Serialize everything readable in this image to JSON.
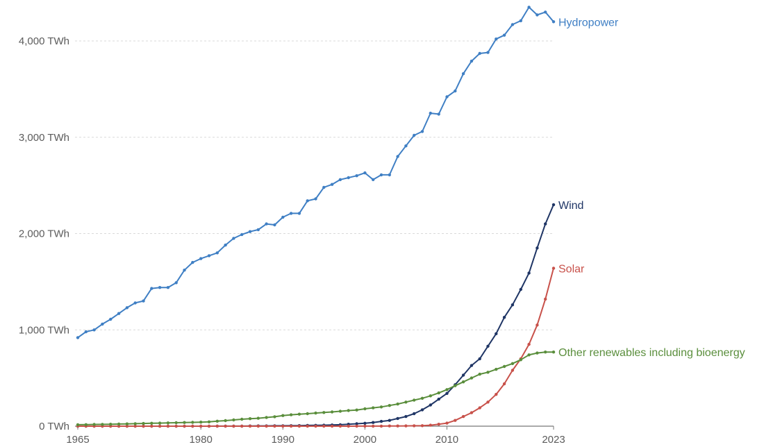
{
  "chart_data": {
    "type": "line",
    "title": "",
    "xlabel": "",
    "ylabel": "",
    "x_ticks": [
      1965,
      1980,
      1990,
      2000,
      2010,
      2023
    ],
    "y_ticks": [
      {
        "value": 0,
        "label": "0 TWh"
      },
      {
        "value": 1000,
        "label": "1,000 TWh"
      },
      {
        "value": 2000,
        "label": "2,000 TWh"
      },
      {
        "value": 3000,
        "label": "3,000 TWh"
      },
      {
        "value": 4000,
        "label": "4,000 TWh"
      }
    ],
    "xlim": [
      1965,
      2023
    ],
    "ylim": [
      0,
      4300
    ],
    "grid": true,
    "legend": "direct labels at line ends",
    "x": [
      1965,
      1966,
      1967,
      1968,
      1969,
      1970,
      1971,
      1972,
      1973,
      1974,
      1975,
      1976,
      1977,
      1978,
      1979,
      1980,
      1981,
      1982,
      1983,
      1984,
      1985,
      1986,
      1987,
      1988,
      1989,
      1990,
      1991,
      1992,
      1993,
      1994,
      1995,
      1996,
      1997,
      1998,
      1999,
      2000,
      2001,
      2002,
      2003,
      2004,
      2005,
      2006,
      2007,
      2008,
      2009,
      2010,
      2011,
      2012,
      2013,
      2014,
      2015,
      2016,
      2017,
      2018,
      2019,
      2020,
      2021,
      2022,
      2023
    ],
    "series": [
      {
        "name": "Hydropower",
        "color": "#3f7fc4",
        "values": [
          920,
          980,
          1000,
          1060,
          1110,
          1170,
          1230,
          1280,
          1300,
          1430,
          1440,
          1440,
          1490,
          1620,
          1700,
          1740,
          1770,
          1800,
          1880,
          1950,
          1990,
          2020,
          2040,
          2100,
          2090,
          2170,
          2210,
          2210,
          2340,
          2360,
          2480,
          2510,
          2560,
          2580,
          2600,
          2630,
          2560,
          2610,
          2610,
          2800,
          2910,
          3020,
          3060,
          3250,
          3240,
          3420,
          3480,
          3660,
          3790,
          3870,
          3880,
          4020,
          4060,
          4170,
          4210,
          4350,
          4270,
          4300,
          4200
        ]
      },
      {
        "name": "Wind",
        "color": "#1f3565",
        "values": [
          0,
          0,
          0,
          0,
          0,
          0,
          0,
          0,
          0,
          0,
          0,
          0,
          0,
          0,
          0,
          0,
          0,
          1,
          1,
          1,
          1,
          2,
          3,
          3,
          4,
          4,
          5,
          6,
          8,
          9,
          10,
          12,
          15,
          20,
          25,
          30,
          38,
          50,
          60,
          80,
          100,
          130,
          170,
          220,
          280,
          340,
          430,
          530,
          630,
          700,
          830,
          960,
          1130,
          1260,
          1420,
          1590,
          1850,
          2100,
          2300
        ]
      },
      {
        "name": "Solar",
        "color": "#c8514a",
        "values": [
          0,
          0,
          0,
          0,
          0,
          0,
          0,
          0,
          0,
          0,
          0,
          0,
          0,
          0,
          0,
          0,
          0,
          0,
          0,
          0,
          0,
          0,
          0,
          0,
          0,
          0,
          0,
          0,
          0,
          0,
          0,
          0,
          0,
          0,
          1,
          1,
          1,
          1,
          2,
          2,
          3,
          4,
          5,
          10,
          20,
          32,
          60,
          100,
          140,
          190,
          250,
          330,
          440,
          580,
          700,
          850,
          1050,
          1320,
          1640
        ]
      },
      {
        "name": "Other renewables including bioenergy",
        "color": "#5a8e3c",
        "values": [
          15,
          16,
          18,
          19,
          20,
          22,
          24,
          26,
          28,
          30,
          32,
          34,
          36,
          38,
          40,
          42,
          45,
          52,
          58,
          65,
          72,
          78,
          82,
          90,
          98,
          110,
          118,
          125,
          130,
          136,
          142,
          148,
          155,
          162,
          168,
          180,
          190,
          200,
          215,
          230,
          250,
          270,
          290,
          315,
          345,
          380,
          420,
          460,
          500,
          540,
          560,
          590,
          620,
          650,
          690,
          740,
          760,
          770,
          770
        ]
      }
    ]
  }
}
